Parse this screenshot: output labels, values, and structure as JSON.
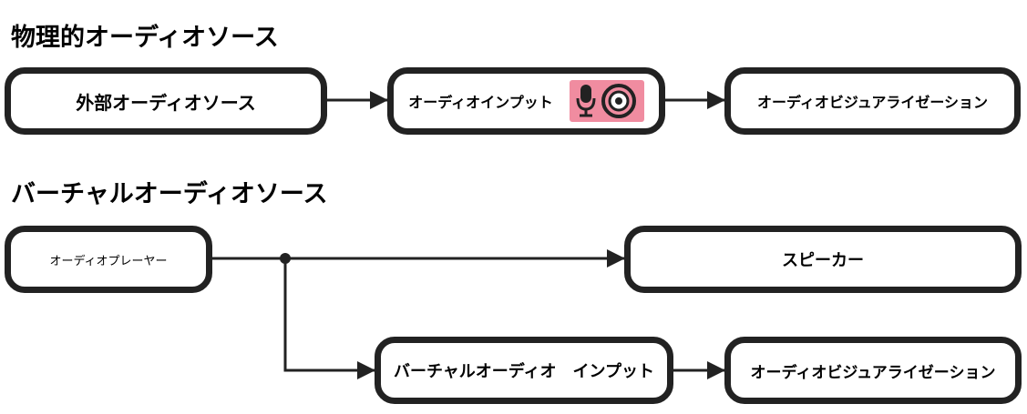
{
  "physical": {
    "title": "物理的オーディオソース",
    "external_source": "外部オーディオソース",
    "audio_input": "オーディオインプット",
    "visualization": "オーディオビジュアライゼーション"
  },
  "virtual": {
    "title": "バーチャルオーディオソース",
    "audio_player": "オーディオプレーヤー",
    "speaker": "スピーカー",
    "virtual_input": "バーチャルオーディオ　インプット",
    "visualization": "オーディオビジュアライゼーション"
  },
  "icons": {
    "microphone": "microphone-icon",
    "speaker": "speaker-cone-icon",
    "badge_color": "#f08ca0"
  }
}
